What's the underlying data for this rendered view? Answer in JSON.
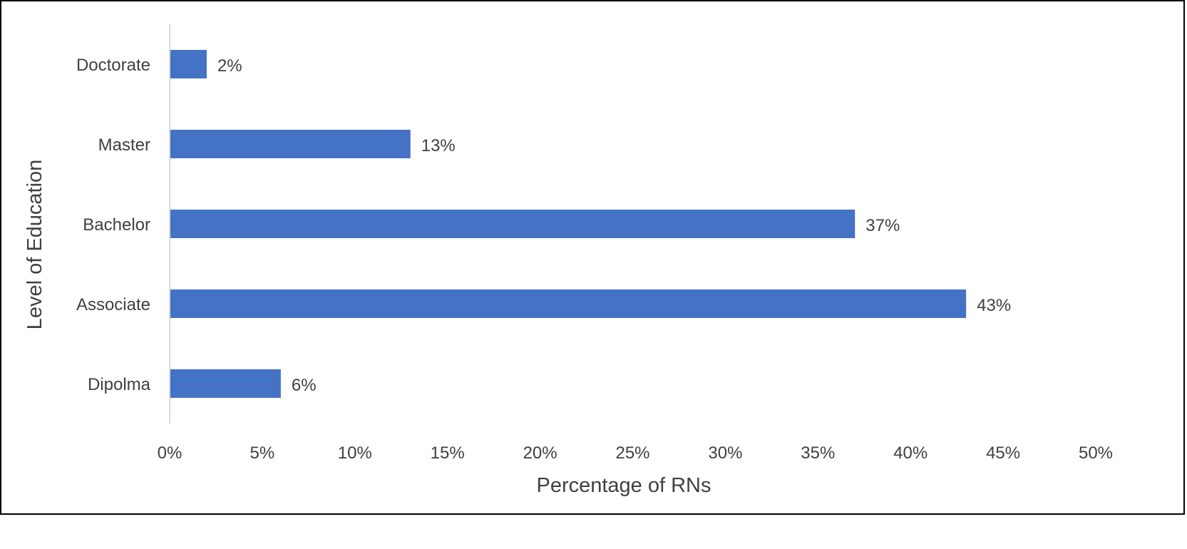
{
  "chart_data": {
    "type": "bar",
    "orientation": "horizontal",
    "title": "",
    "xlabel": "Percentage of RNs",
    "ylabel": "Level of Education",
    "categories": [
      "Doctorate",
      "Master",
      "Bachelor",
      "Associate",
      "Dipolma"
    ],
    "values": [
      2,
      13,
      37,
      43,
      6
    ],
    "data_labels": [
      "2%",
      "13%",
      "37%",
      "43%",
      "6%"
    ],
    "xlim": [
      0,
      50
    ],
    "x_ticks": [
      0,
      5,
      10,
      15,
      20,
      25,
      30,
      35,
      40,
      45,
      50
    ],
    "x_tick_labels": [
      "0%",
      "5%",
      "10%",
      "15%",
      "20%",
      "25%",
      "30%",
      "35%",
      "40%",
      "45%",
      "50%"
    ],
    "grid": false,
    "legend": "none",
    "bar_color": "#4472C4",
    "axis_line_color": "#D9D9D9",
    "text_color": "#404040"
  }
}
